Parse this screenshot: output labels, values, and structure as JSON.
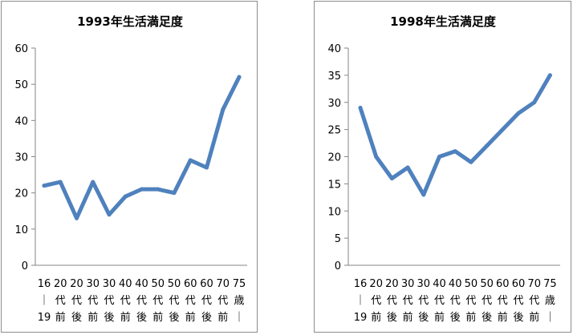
{
  "chart_data": [
    {
      "type": "line",
      "title": "1993年生活満足度",
      "categories": [
        [
          "16",
          "｜",
          "19"
        ],
        [
          "20",
          "代",
          "前"
        ],
        [
          "20",
          "代",
          "後"
        ],
        [
          "30",
          "代",
          "前"
        ],
        [
          "30",
          "代",
          "後"
        ],
        [
          "40",
          "代",
          "前"
        ],
        [
          "40",
          "代",
          "後"
        ],
        [
          "50",
          "代",
          "前"
        ],
        [
          "50",
          "代",
          "後"
        ],
        [
          "60",
          "代",
          "前"
        ],
        [
          "60",
          "代",
          "後"
        ],
        [
          "70",
          "代",
          "前"
        ],
        [
          "75",
          "歳",
          "｜"
        ]
      ],
      "values": [
        22,
        23,
        13,
        23,
        14,
        19,
        21,
        21,
        20,
        29,
        27,
        43,
        52
      ],
      "ylim": [
        0,
        60
      ],
      "yticks": [
        0,
        10,
        20,
        30,
        40,
        50,
        60
      ],
      "ytick_labels": [
        "0",
        "10",
        "20",
        "30",
        "40",
        "50",
        "60"
      ],
      "grid": false,
      "legend": "none",
      "color": "#4f81bd"
    },
    {
      "type": "line",
      "title": "1998年生活満足度",
      "categories": [
        [
          "16",
          "｜",
          "19"
        ],
        [
          "20",
          "代",
          "前"
        ],
        [
          "20",
          "代",
          "後"
        ],
        [
          "30",
          "代",
          "前"
        ],
        [
          "30",
          "代",
          "後"
        ],
        [
          "40",
          "代",
          "前"
        ],
        [
          "40",
          "代",
          "後"
        ],
        [
          "50",
          "代",
          "前"
        ],
        [
          "50",
          "代",
          "後"
        ],
        [
          "60",
          "代",
          "前"
        ],
        [
          "60",
          "代",
          "後"
        ],
        [
          "70",
          "代",
          "前"
        ],
        [
          "75",
          "歳",
          "｜"
        ]
      ],
      "values": [
        29,
        20,
        16,
        18,
        13,
        20,
        21,
        19,
        22,
        25,
        28,
        30,
        35
      ],
      "ylim": [
        0,
        40
      ],
      "yticks": [
        0,
        5,
        10,
        15,
        20,
        25,
        30,
        35,
        40
      ],
      "ytick_labels": [
        "0",
        "5",
        "10",
        "15",
        "20",
        "25",
        "30",
        "35",
        "40"
      ],
      "grid": false,
      "legend": "none",
      "color": "#4f81bd"
    }
  ]
}
